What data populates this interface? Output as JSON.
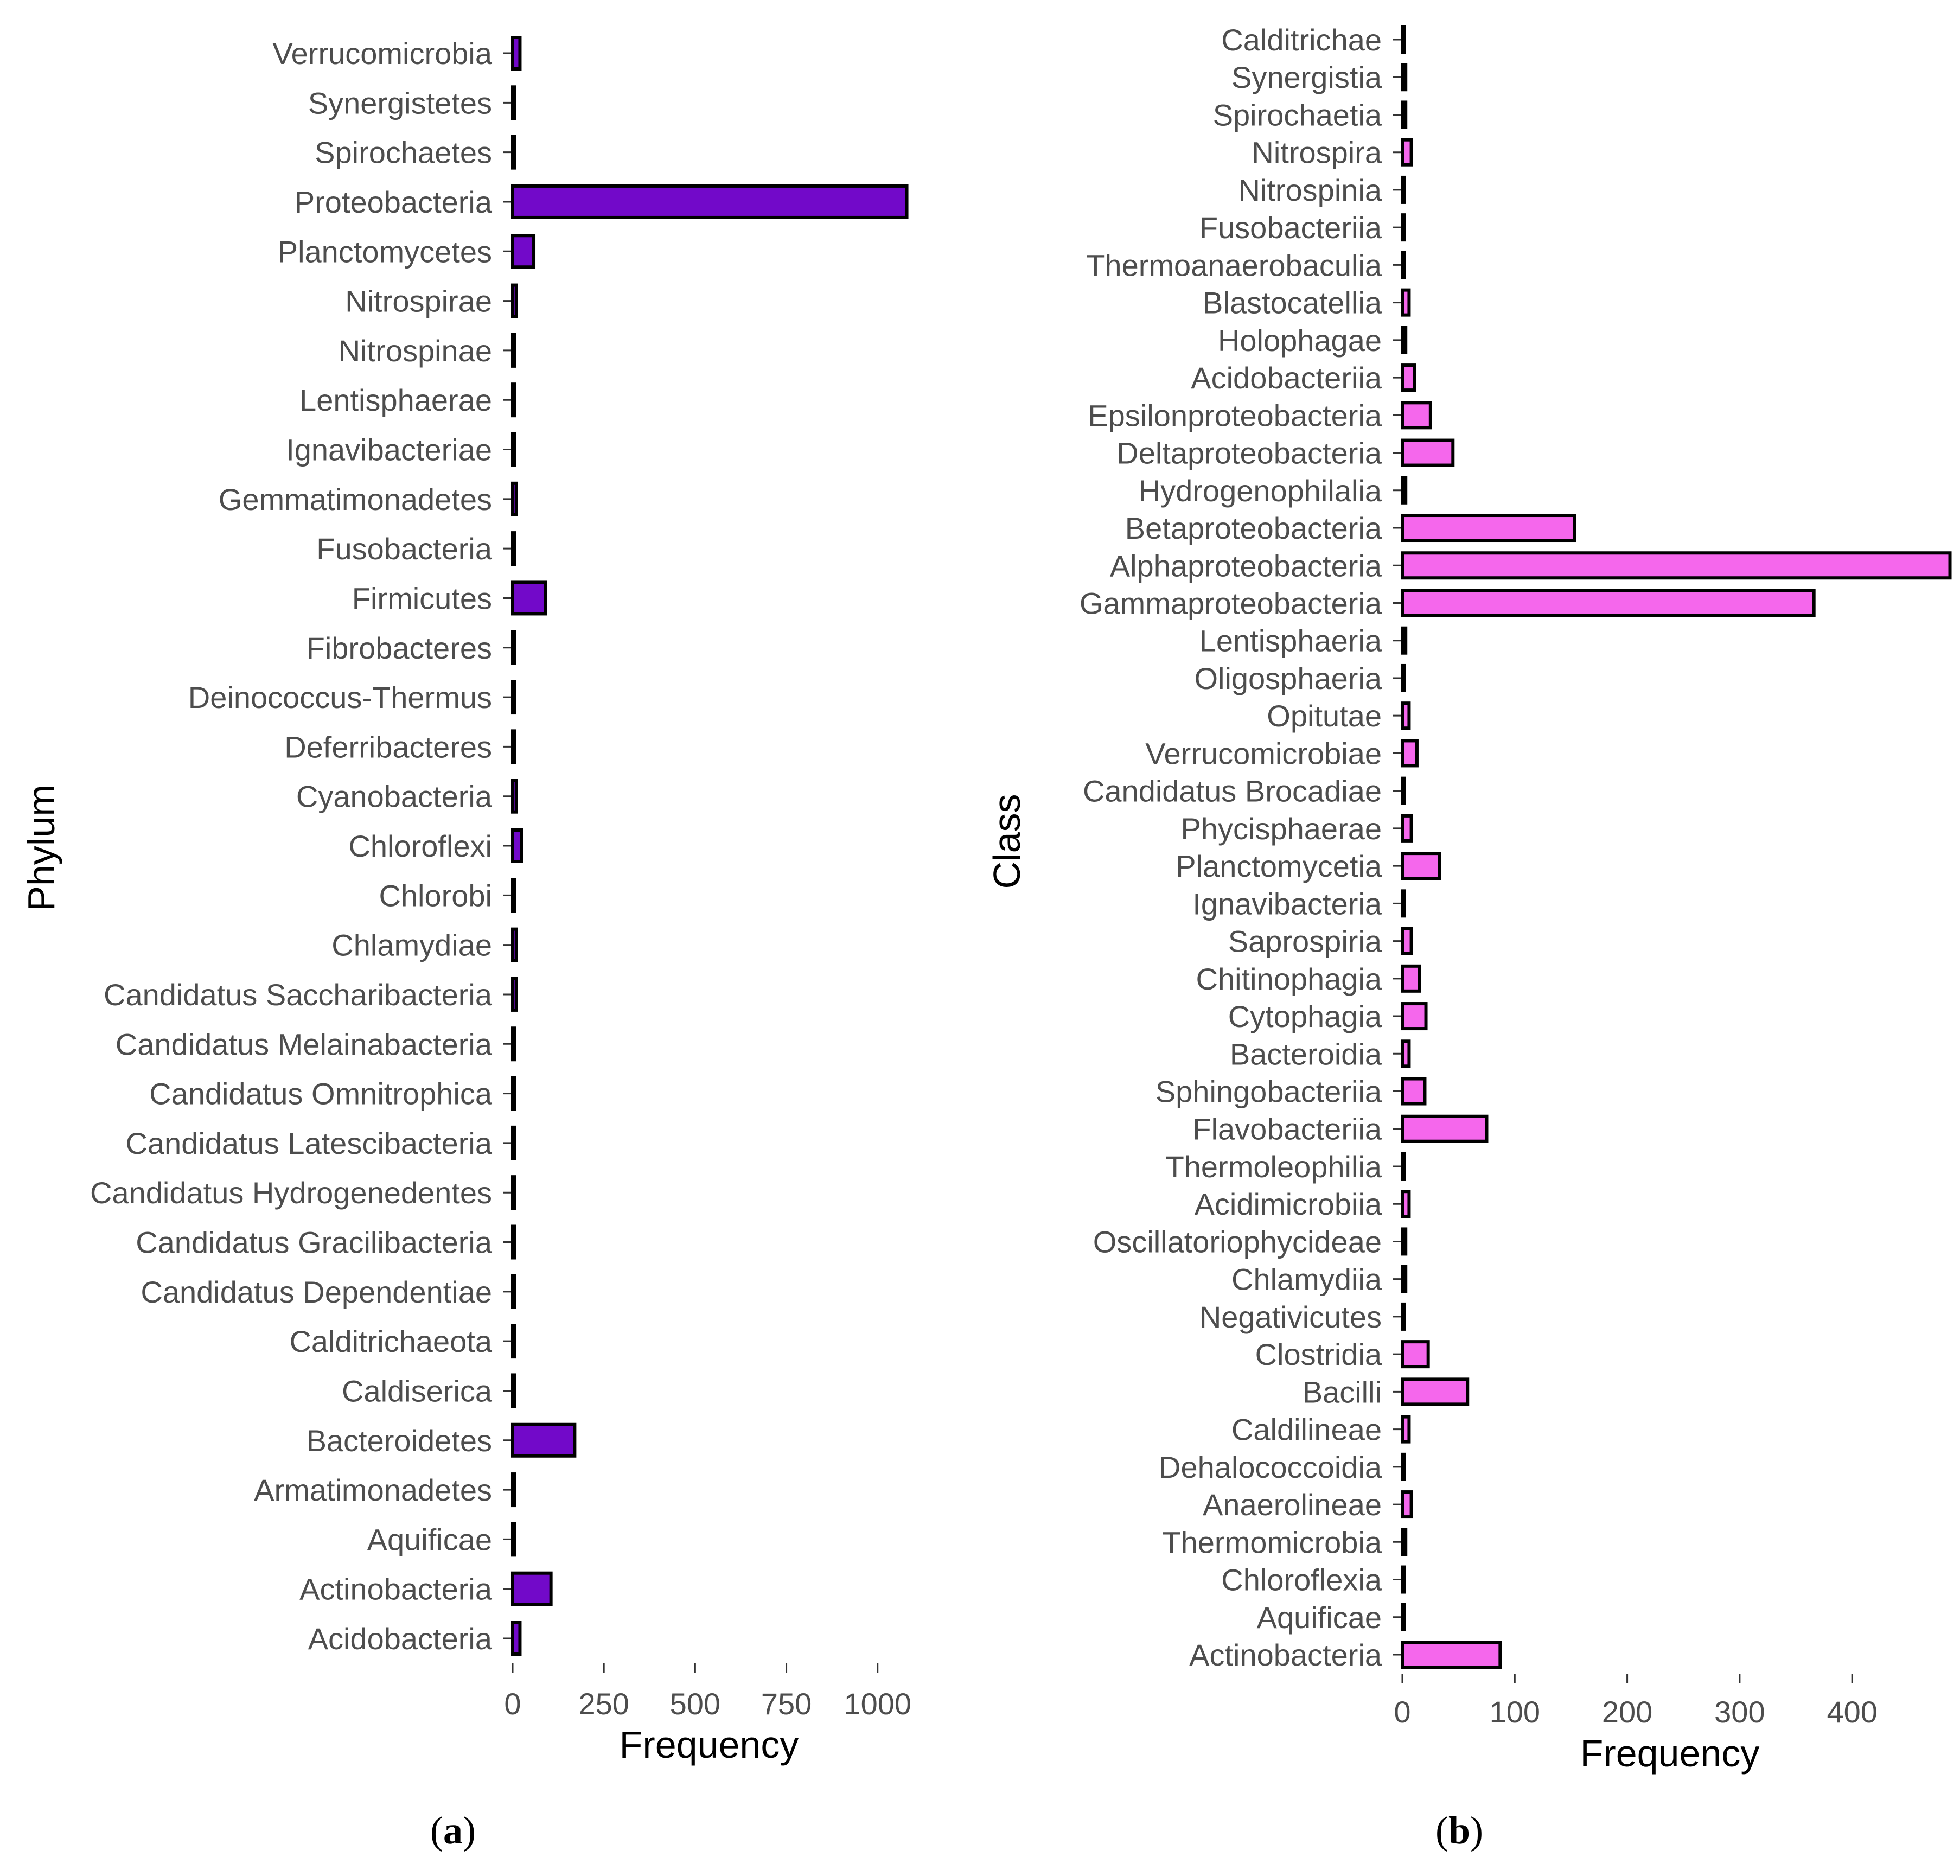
{
  "chart_data": [
    {
      "type": "bar",
      "orientation": "horizontal",
      "panel_label": "a",
      "xlabel": "Frequency",
      "ylabel": "Phylum",
      "xlim": [
        0,
        1100
      ],
      "xticks": [
        0,
        250,
        500,
        750,
        1000
      ],
      "xtick_labels": [
        "0",
        "250",
        "500",
        "750",
        "1000"
      ],
      "grid": false,
      "bar_color": "#7209c9",
      "categories": [
        "Verrucomicrobia",
        "Synergistetes",
        "Spirochaetes",
        "Proteobacteria",
        "Planctomycetes",
        "Nitrospirae",
        "Nitrospinae",
        "Lentisphaerae",
        "Ignavibacteriae",
        "Gemmatimonadetes",
        "Fusobacteria",
        "Firmicutes",
        "Fibrobacteres",
        "Deinococcus-Thermus",
        "Deferribacteres",
        "Cyanobacteria",
        "Chloroflexi",
        "Chlorobi",
        "Chlamydiae",
        "Candidatus Saccharibacteria",
        "Candidatus Melainabacteria",
        "Candidatus Omnitrophica",
        "Candidatus Latescibacteria",
        "Candidatus Hydrogenedentes",
        "Candidatus Gracilibacteria",
        "Candidatus Dependentiae",
        "Calditrichaeota",
        "Caldiserica",
        "Bacteroidetes",
        "Armatimonadetes",
        "Aquificae",
        "Actinobacteria",
        "Acidobacteria"
      ],
      "values": [
        20,
        2,
        2,
        1080,
        58,
        10,
        3,
        2,
        3,
        10,
        2,
        90,
        2,
        2,
        2,
        10,
        25,
        2,
        10,
        10,
        2,
        2,
        2,
        2,
        2,
        2,
        2,
        2,
        170,
        2,
        2,
        105,
        20
      ]
    },
    {
      "type": "bar",
      "orientation": "horizontal",
      "panel_label": "b",
      "xlabel": "Frequency",
      "ylabel": "Class",
      "xlim": [
        0,
        480
      ],
      "xticks": [
        0,
        100,
        200,
        300,
        400
      ],
      "xtick_labels": [
        "0",
        "100",
        "200",
        "300",
        "400"
      ],
      "grid": false,
      "bar_color": "#f567ec",
      "categories": [
        "Calditrichae",
        "Synergistia",
        "Spirochaetia",
        "Nitrospira",
        "Nitrospinia",
        "Fusobacteriia",
        "Thermoanaerobaculia",
        "Blastocatellia",
        "Holophagae",
        "Acidobacteriia",
        "Epsilonproteobacteria",
        "Deltaproteobacteria",
        "Hydrogenophilalia",
        "Betaproteobacteria",
        "Alphaproteobacteria",
        "Gammaproteobacteria",
        "Lentisphaeria",
        "Oligosphaeria",
        "Opitutae",
        "Verrucomicrobiae",
        "Candidatus Brocadiae",
        "Phycisphaerae",
        "Planctomycetia",
        "Ignavibacteria",
        "Saprospiria",
        "Chitinophagia",
        "Cytophagia",
        "Bacteroidia",
        "Sphingobacteriia",
        "Flavobacteriia",
        "Thermoleophilia",
        "Acidimicrobiia",
        "Oscillatoriophycideae",
        "Chlamydiia",
        "Negativicutes",
        "Clostridia",
        "Bacilli",
        "Caldilineae",
        "Dehalococcoidia",
        "Anaerolineae",
        "Thermomicrobia",
        "Chloroflexia",
        "Aquificae",
        "Actinobacteria"
      ],
      "values": [
        1,
        3,
        3,
        8,
        1,
        1,
        1,
        6,
        3,
        11,
        25,
        45,
        3,
        153,
        487,
        366,
        3,
        1,
        6,
        13,
        1,
        8,
        33,
        1,
        8,
        15,
        21,
        6,
        20,
        75,
        1,
        6,
        3,
        3,
        1,
        23,
        58,
        6,
        1,
        8,
        3,
        1,
        1,
        87
      ]
    }
  ]
}
